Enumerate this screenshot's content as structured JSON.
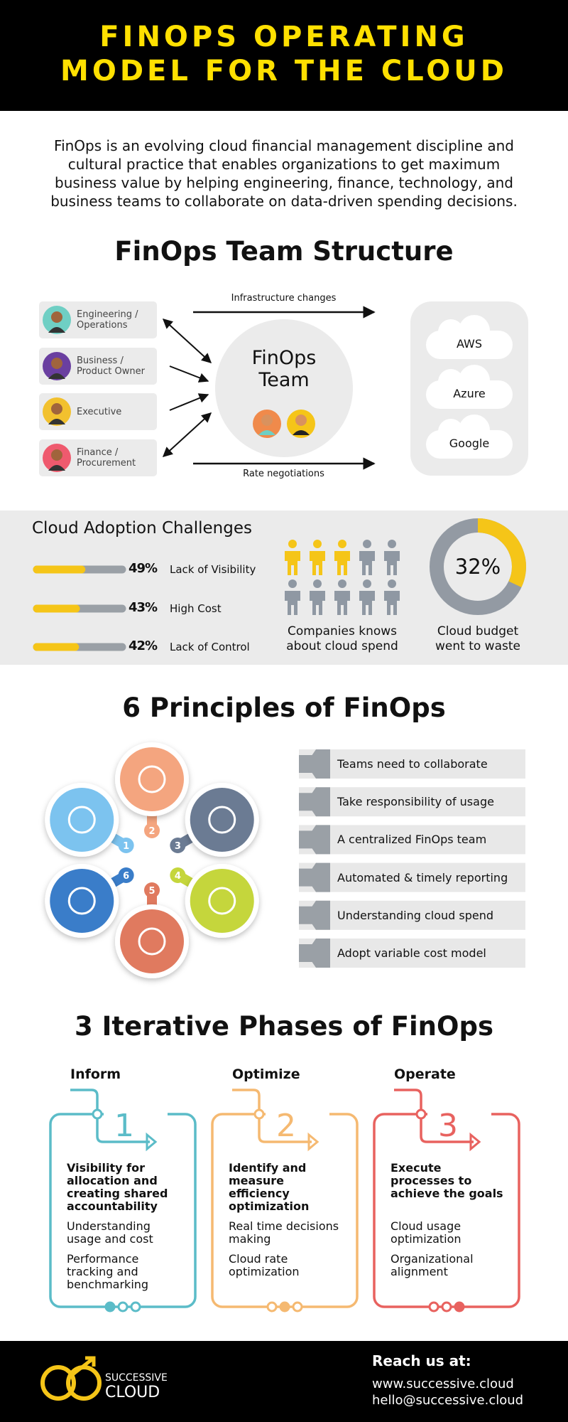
{
  "header": {
    "title": "FINOPS OPERATING\nMODEL FOR THE CLOUD"
  },
  "intro": "FinOps is an evolving cloud financial management discipline and cultural practice that enables organizations to get maximum business value by helping engineering, finance, technology, and business teams to collaborate on data-driven spending decisions.",
  "team": {
    "title": "FinOps Team Structure",
    "members": [
      "Engineering / Operations",
      "Business / Product Owner",
      "Executive",
      "Finance / Procurement"
    ],
    "center": "FinOps\nTeam",
    "top_arrow": "Infrastructure changes",
    "bottom_arrow": "Rate negotiations",
    "clouds": [
      "AWS",
      "Azure",
      "Google"
    ]
  },
  "challenges": {
    "title": "Cloud Adoption Challenges",
    "items": [
      {
        "value": 49,
        "value_label": "49%",
        "label": "Lack of Visibility"
      },
      {
        "value": 43,
        "value_label": "43%",
        "label": "High Cost"
      },
      {
        "value": 42,
        "value_label": "42%",
        "label": "Lack of Control"
      }
    ],
    "people": {
      "filled": 3,
      "total": 10,
      "caption": "Companies knows about cloud spend"
    },
    "waste": {
      "value": 32,
      "value_label": "32%",
      "caption": "Cloud budget went to waste"
    }
  },
  "principles": {
    "title": "6 Principles of FinOps",
    "numbers": [
      1,
      2,
      3,
      4,
      5,
      6
    ],
    "items": [
      "Teams need to collaborate",
      "Take responsibility of usage",
      "A centralized FinOps team",
      "Automated & timely reporting",
      "Understanding cloud spend",
      "Adopt variable cost model"
    ]
  },
  "phases": {
    "title": "3 Iterative Phases of FinOps",
    "items": [
      {
        "name": "Inform",
        "number": 1,
        "heading": "Visibility for allocation and creating shared accountability",
        "points": [
          "Understanding usage and cost",
          "Performance tracking and benchmarking"
        ]
      },
      {
        "name": "Optimize",
        "number": 2,
        "heading": "Identify and measure efficiency optimization",
        "points": [
          "Real time decisions making",
          "Cloud rate optimization"
        ]
      },
      {
        "name": "Operate",
        "number": 3,
        "heading": "Execute processes to achieve the goals",
        "points": [
          "Cloud usage optimization",
          "Organizational alignment"
        ]
      }
    ]
  },
  "footer": {
    "brand_top": "SUCCESSIVE",
    "brand_bottom": "CLOUD",
    "contact_title": "Reach us at:",
    "website": "www.successive.cloud",
    "email": "hello@successive.cloud"
  }
}
